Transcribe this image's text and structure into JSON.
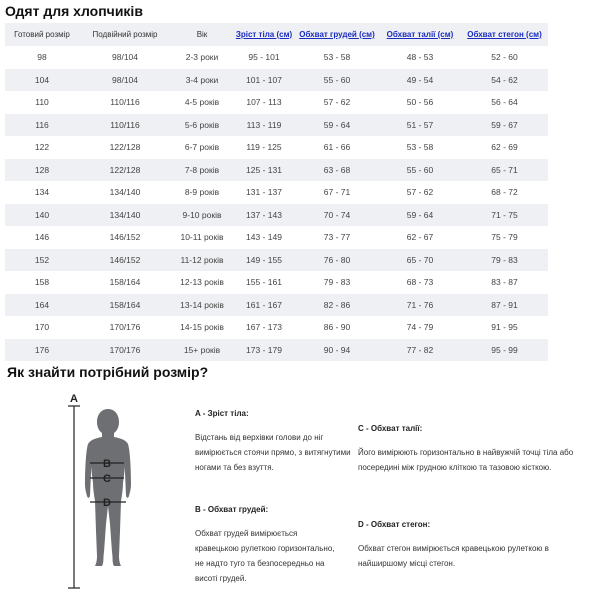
{
  "title": "Одят для хлопчиків",
  "table": {
    "headers": [
      "Готовий розмір",
      "Подвійний розмір",
      "Вік",
      "Зріст тіла (см)",
      "Обхват грудей (см)",
      "Обхват талії (см)",
      "Обхват стегон (см)"
    ],
    "rows": [
      [
        "98",
        "98/104",
        "2-3 роки",
        "95 - 101",
        "53 - 58",
        "48 - 53",
        "52 - 60"
      ],
      [
        "104",
        "98/104",
        "3-4 роки",
        "101 - 107",
        "55 - 60",
        "49 - 54",
        "54 - 62"
      ],
      [
        "110",
        "110/116",
        "4-5 років",
        "107 - 113",
        "57 - 62",
        "50 - 56",
        "56 - 64"
      ],
      [
        "116",
        "110/116",
        "5-6 років",
        "113 - 119",
        "59 - 64",
        "51 - 57",
        "59 - 67"
      ],
      [
        "122",
        "122/128",
        "6-7 років",
        "119 - 125",
        "61 - 66",
        "53 - 58",
        "62 - 69"
      ],
      [
        "128",
        "122/128",
        "7-8 років",
        "125 - 131",
        "63 - 68",
        "55 - 60",
        "65 - 71"
      ],
      [
        "134",
        "134/140",
        "8-9 років",
        "131 - 137",
        "67 - 71",
        "57 - 62",
        "68 - 72"
      ],
      [
        "140",
        "134/140",
        "9-10 років",
        "137 - 143",
        "70 - 74",
        "59 - 64",
        "71 - 75"
      ],
      [
        "146",
        "146/152",
        "10-11 років",
        "143 - 149",
        "73 - 77",
        "62 - 67",
        "75 - 79"
      ],
      [
        "152",
        "146/152",
        "11-12 років",
        "149 - 155",
        "76 - 80",
        "65 - 70",
        "79 - 83"
      ],
      [
        "158",
        "158/164",
        "12-13 років",
        "155 - 161",
        "79 - 83",
        "68 - 73",
        "83 - 87"
      ],
      [
        "164",
        "158/164",
        "13-14 років",
        "161 - 167",
        "82 - 86",
        "71 - 76",
        "87 - 91"
      ],
      [
        "170",
        "170/176",
        "14-15 років",
        "167 - 173",
        "86 - 90",
        "74 - 79",
        "91 - 95"
      ],
      [
        "176",
        "170/176",
        "15+ років",
        "173 - 179",
        "90 - 94",
        "77 - 82",
        "95 - 99"
      ]
    ]
  },
  "guide": {
    "title": "Як знайти потрібний розмір?",
    "figure_labels": [
      "A",
      "B",
      "C",
      "D"
    ],
    "items": [
      {
        "title": "A - Зріст тіла:",
        "text": "Відстань від верхівки голови до ніг вимірюється стоячи прямо, з витягнутими ногами та без взуття."
      },
      {
        "title": "B - Обхват грудей:",
        "text": "Обхват грудей вимірюється кравецькою рулеткою горизонтально, не надто туго та безпосередньо на висоті грудей."
      },
      {
        "title": "C - Обхват талії:",
        "text": "Його вимірюють горизонтально в найвужчій точці тіла або посередині між грудною кліткою та тазовою кісткою."
      },
      {
        "title": "D - Обхват стегон:",
        "text": "Обхват стегон вимірюється кравецькою рулеткою в найширшому місці стегон."
      }
    ]
  }
}
